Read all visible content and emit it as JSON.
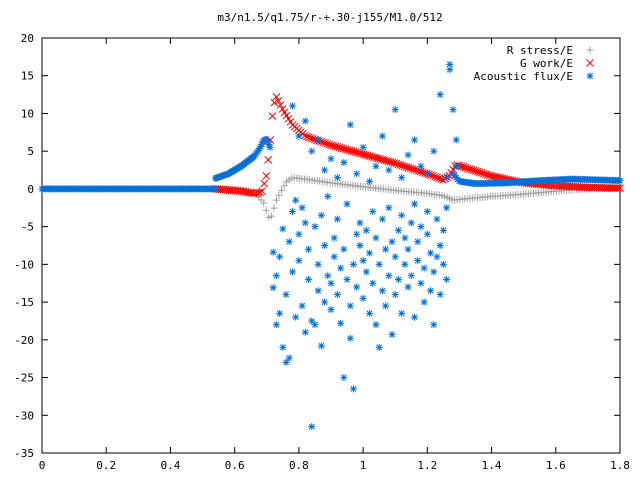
{
  "chart_data": {
    "type": "scatter",
    "title": "m3/n1.5/q1.75/r-+.30-j155/M1.0/512",
    "xlabel": "",
    "ylabel": "",
    "xlim": [
      0,
      1.8
    ],
    "ylim": [
      -35,
      20
    ],
    "grid": false,
    "legend": "top-right",
    "x_ticks": [
      "0",
      "0.2",
      "0.4",
      "0.6",
      "0.8",
      "1",
      "1.2",
      "1.4",
      "1.6",
      "1.8"
    ],
    "y_ticks": [
      "-35",
      "-30",
      "-25",
      "-20",
      "-15",
      "-10",
      "-5",
      "0",
      "5",
      "10",
      "15",
      "20"
    ],
    "series": [
      {
        "name": "R stress/E",
        "marker": "plus",
        "color": "#a0a0a0",
        "profile": [
          [
            0,
            0
          ],
          [
            0.54,
            0
          ],
          [
            0.62,
            -0.1
          ],
          [
            0.66,
            -0.4
          ],
          [
            0.69,
            -1.8
          ],
          [
            0.71,
            -4.2
          ],
          [
            0.73,
            -1.5
          ],
          [
            0.76,
            0.9
          ],
          [
            0.78,
            1.5
          ],
          [
            0.82,
            1.3
          ],
          [
            0.9,
            0.8
          ],
          [
            1.0,
            0.3
          ],
          [
            1.1,
            -0.2
          ],
          [
            1.2,
            -0.6
          ],
          [
            1.25,
            -0.9
          ],
          [
            1.28,
            -1.5
          ],
          [
            1.32,
            -1.3
          ],
          [
            1.4,
            -1.0
          ],
          [
            1.5,
            -0.7
          ],
          [
            1.6,
            -0.3
          ],
          [
            1.7,
            0
          ],
          [
            1.8,
            0.1
          ]
        ],
        "x_start": 0.54,
        "x_end": 1.8,
        "count": 160
      },
      {
        "name": "G work/E",
        "marker": "cross",
        "color": "#ff0000",
        "profile": [
          [
            0,
            0
          ],
          [
            0.54,
            0
          ],
          [
            0.62,
            -0.3
          ],
          [
            0.66,
            -0.6
          ],
          [
            0.685,
            -0.4
          ],
          [
            0.7,
            2.0
          ],
          [
            0.71,
            6.0
          ],
          [
            0.72,
            11.0
          ],
          [
            0.73,
            12.2
          ],
          [
            0.75,
            10.5
          ],
          [
            0.78,
            8.5
          ],
          [
            0.82,
            7.0
          ],
          [
            0.9,
            5.8
          ],
          [
            1.0,
            4.6
          ],
          [
            1.1,
            3.4
          ],
          [
            1.2,
            2.0
          ],
          [
            1.25,
            1.2
          ],
          [
            1.27,
            1.8
          ],
          [
            1.29,
            3.2
          ],
          [
            1.32,
            2.8
          ],
          [
            1.4,
            1.7
          ],
          [
            1.5,
            0.8
          ],
          [
            1.6,
            0.4
          ],
          [
            1.7,
            0.2
          ],
          [
            1.8,
            0.1
          ]
        ],
        "x_start": 0.54,
        "x_end": 1.8,
        "count": 200
      },
      {
        "name": "Acoustic flux/E",
        "marker": "star",
        "color": "#0070d8",
        "profile": [
          [
            0,
            0
          ],
          [
            0.54,
            0
          ],
          [
            1.8,
            0
          ]
        ],
        "x_start": 0,
        "x_end": 0.54,
        "count": 110,
        "segments": [
          {
            "profile": [
              [
                0.54,
                1.4
              ],
              [
                0.58,
                2.0
              ],
              [
                0.62,
                3.0
              ],
              [
                0.66,
                4.3
              ],
              [
                0.68,
                5.5
              ],
              [
                0.69,
                6.4
              ],
              [
                0.7,
                6.6
              ],
              [
                0.71,
                5.5
              ]
            ],
            "x_start": 0.54,
            "x_end": 0.71,
            "count": 48
          },
          {
            "profile": [
              [
                1.28,
                2.0
              ],
              [
                1.3,
                1.0
              ],
              [
                1.35,
                0.7
              ],
              [
                1.45,
                0.8
              ],
              [
                1.55,
                1.1
              ],
              [
                1.65,
                1.3
              ],
              [
                1.8,
                1.1
              ]
            ],
            "x_start": 1.28,
            "x_end": 1.8,
            "count": 110
          }
        ],
        "scatter_points": [
          [
            0.72,
            -8.4
          ],
          [
            0.72,
            -13.1
          ],
          [
            0.73,
            -18.0
          ],
          [
            0.73,
            -11.5
          ],
          [
            0.74,
            -9.0
          ],
          [
            0.74,
            -16.5
          ],
          [
            0.75,
            -5.3
          ],
          [
            0.75,
            -21.0
          ],
          [
            0.76,
            -14.0
          ],
          [
            0.76,
            -23.0
          ],
          [
            0.77,
            -7.0
          ],
          [
            0.77,
            -22.4
          ],
          [
            0.78,
            -3.0
          ],
          [
            0.78,
            -11.0
          ],
          [
            0.79,
            -17.0
          ],
          [
            0.79,
            -1.5
          ],
          [
            0.8,
            -6.0
          ],
          [
            0.8,
            -9.5
          ],
          [
            0.81,
            -15.5
          ],
          [
            0.81,
            -2.5
          ],
          [
            0.82,
            -4.5
          ],
          [
            0.82,
            -19.0
          ],
          [
            0.83,
            -12.0
          ],
          [
            0.83,
            -8.0
          ],
          [
            0.84,
            -17.5
          ],
          [
            0.84,
            -31.5
          ],
          [
            0.85,
            -18.0
          ],
          [
            0.85,
            -5.0
          ],
          [
            0.86,
            -13.5
          ],
          [
            0.86,
            -10.0
          ],
          [
            0.87,
            -20.8
          ],
          [
            0.87,
            -3.5
          ],
          [
            0.88,
            -15.0
          ],
          [
            0.88,
            -7.5
          ],
          [
            0.89,
            -11.5
          ],
          [
            0.89,
            -1.0
          ],
          [
            0.9,
            -16.0
          ],
          [
            0.9,
            -12.5
          ],
          [
            0.91,
            -6.5
          ],
          [
            0.91,
            -9.0
          ],
          [
            0.92,
            -14.0
          ],
          [
            0.92,
            -4.0
          ],
          [
            0.93,
            -10.5
          ],
          [
            0.93,
            -17.8
          ],
          [
            0.94,
            -25.0
          ],
          [
            0.94,
            -8.0
          ],
          [
            0.95,
            -12.0
          ],
          [
            0.95,
            -2.0
          ],
          [
            0.96,
            -15.5
          ],
          [
            0.96,
            -19.8
          ],
          [
            0.97,
            -26.5
          ],
          [
            0.97,
            -10.0
          ],
          [
            0.98,
            -6.0
          ],
          [
            0.98,
            -13.0
          ],
          [
            0.99,
            -7.5
          ],
          [
            0.99,
            -4.5
          ],
          [
            1.0,
            -9.5
          ],
          [
            1.0,
            -14.5
          ],
          [
            1.01,
            -11.0
          ],
          [
            1.01,
            -5.5
          ],
          [
            1.02,
            -16.5
          ],
          [
            1.02,
            -8.5
          ],
          [
            1.03,
            -12.5
          ],
          [
            1.03,
            -3.0
          ],
          [
            1.04,
            -18.0
          ],
          [
            1.04,
            -6.5
          ],
          [
            1.05,
            -21.0
          ],
          [
            1.05,
            -10.0
          ],
          [
            1.06,
            -13.5
          ],
          [
            1.06,
            -4.0
          ],
          [
            1.07,
            -8.0
          ],
          [
            1.07,
            -15.5
          ],
          [
            1.08,
            -11.5
          ],
          [
            1.08,
            -2.5
          ],
          [
            1.09,
            -7.0
          ],
          [
            1.09,
            -19.3
          ],
          [
            1.1,
            -14.0
          ],
          [
            1.1,
            -9.0
          ],
          [
            1.11,
            -5.5
          ],
          [
            1.11,
            -12.0
          ],
          [
            1.12,
            -16.5
          ],
          [
            1.12,
            -3.5
          ],
          [
            1.13,
            -10.0
          ],
          [
            1.13,
            -6.5
          ],
          [
            1.14,
            -13.0
          ],
          [
            1.14,
            -8.0
          ],
          [
            1.15,
            -4.5
          ],
          [
            1.15,
            -11.5
          ],
          [
            1.16,
            -17.0
          ],
          [
            1.16,
            -2.0
          ],
          [
            1.17,
            -9.5
          ],
          [
            1.17,
            -7.0
          ],
          [
            1.18,
            -12.5
          ],
          [
            1.18,
            -5.0
          ],
          [
            1.19,
            -15.0
          ],
          [
            1.19,
            -10.5
          ],
          [
            1.2,
            -6.0
          ],
          [
            1.2,
            -3.0
          ],
          [
            1.21,
            -13.5
          ],
          [
            1.21,
            -8.5
          ],
          [
            1.22,
            -11.0
          ],
          [
            1.22,
            -18.0
          ],
          [
            1.23,
            -9.0
          ],
          [
            1.23,
            -4.0
          ],
          [
            1.24,
            -7.5
          ],
          [
            1.24,
            -14.0
          ],
          [
            1.25,
            -10.0
          ],
          [
            1.25,
            -5.5
          ],
          [
            1.26,
            -2.5
          ],
          [
            1.26,
            -12.0
          ],
          [
            0.78,
            11.0
          ],
          [
            0.8,
            7.0
          ],
          [
            0.82,
            9.0
          ],
          [
            0.84,
            5.0
          ],
          [
            0.86,
            6.5
          ],
          [
            0.88,
            2.5
          ],
          [
            0.9,
            4.0
          ],
          [
            0.92,
            1.5
          ],
          [
            0.94,
            3.5
          ],
          [
            0.96,
            8.5
          ],
          [
            0.98,
            2.0
          ],
          [
            1.0,
            5.5
          ],
          [
            1.02,
            1.0
          ],
          [
            1.04,
            3.0
          ],
          [
            1.06,
            7.0
          ],
          [
            1.08,
            2.5
          ],
          [
            1.1,
            10.5
          ],
          [
            1.12,
            1.5
          ],
          [
            1.14,
            4.5
          ],
          [
            1.16,
            6.5
          ],
          [
            1.18,
            3.0
          ],
          [
            1.2,
            2.0
          ],
          [
            1.22,
            5.0
          ],
          [
            1.24,
            12.5
          ],
          [
            1.26,
            1.5
          ],
          [
            1.27,
            16.5
          ],
          [
            1.27,
            15.8
          ],
          [
            1.28,
            10.5
          ],
          [
            1.29,
            6.5
          ],
          [
            1.29,
            3.0
          ]
        ]
      }
    ]
  }
}
